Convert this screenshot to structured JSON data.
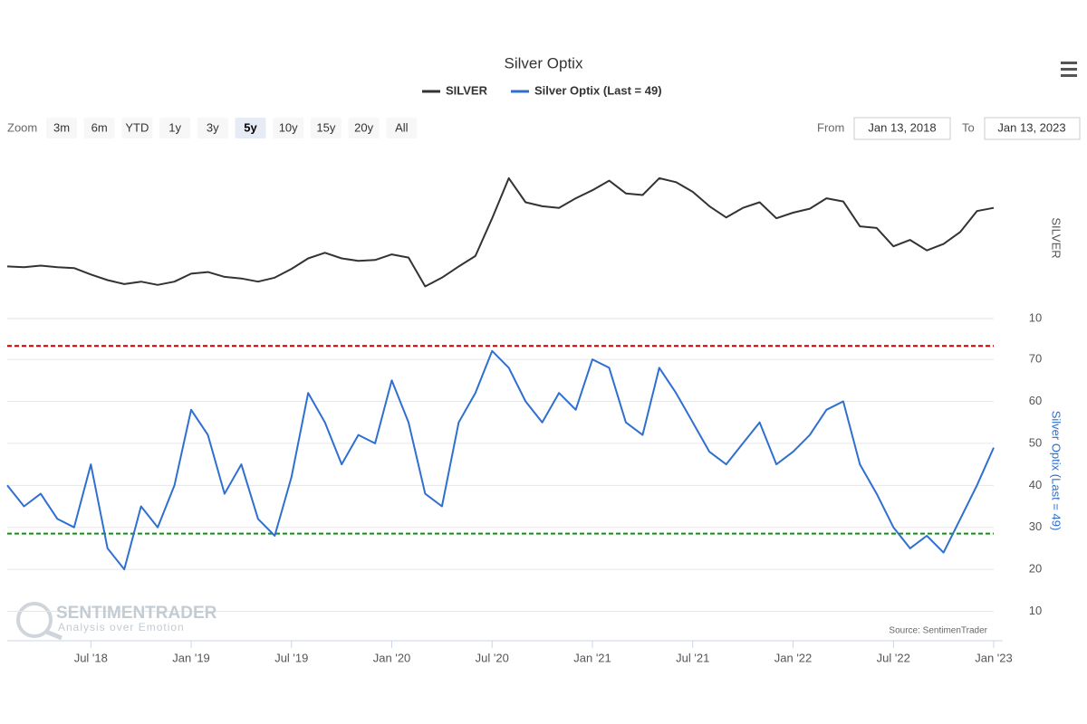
{
  "chart_data": {
    "type": "line",
    "title": "Silver Optix",
    "x": [
      "2018-02",
      "2018-03",
      "2018-04",
      "2018-05",
      "2018-06",
      "2018-07",
      "2018-08",
      "2018-09",
      "2018-10",
      "2018-11",
      "2018-12",
      "2019-01",
      "2019-02",
      "2019-03",
      "2019-04",
      "2019-05",
      "2019-06",
      "2019-07",
      "2019-08",
      "2019-09",
      "2019-10",
      "2019-11",
      "2019-12",
      "2020-01",
      "2020-02",
      "2020-03",
      "2020-04",
      "2020-05",
      "2020-06",
      "2020-07",
      "2020-08",
      "2020-09",
      "2020-10",
      "2020-11",
      "2020-12",
      "2021-01",
      "2021-02",
      "2021-03",
      "2021-04",
      "2021-05",
      "2021-06",
      "2021-07",
      "2021-08",
      "2021-09",
      "2021-10",
      "2021-11",
      "2021-12",
      "2022-01",
      "2022-02",
      "2022-03",
      "2022-04",
      "2022-05",
      "2022-06",
      "2022-07",
      "2022-08",
      "2022-09",
      "2022-10",
      "2022-11",
      "2022-12",
      "2023-01"
    ],
    "xlim": [
      "2018-02",
      "2023-01"
    ],
    "xticks": [
      {
        "value": "2018-07",
        "label": "Jul '18"
      },
      {
        "value": "2019-01",
        "label": "Jan '19"
      },
      {
        "value": "2019-07",
        "label": "Jul '19"
      },
      {
        "value": "2020-01",
        "label": "Jan '20"
      },
      {
        "value": "2020-07",
        "label": "Jul '20"
      },
      {
        "value": "2021-01",
        "label": "Jan '21"
      },
      {
        "value": "2021-07",
        "label": "Jul '21"
      },
      {
        "value": "2022-01",
        "label": "Jan '22"
      },
      {
        "value": "2022-07",
        "label": "Jul '22"
      },
      {
        "value": "2023-01",
        "label": "Jan '23"
      }
    ],
    "series": [
      {
        "name": "SILVER",
        "color": "#333333",
        "axis": "y",
        "values": [
          16.5,
          16.4,
          16.6,
          16.4,
          16.3,
          15.5,
          14.8,
          14.3,
          14.6,
          14.2,
          14.6,
          15.6,
          15.8,
          15.2,
          15.0,
          14.6,
          15.1,
          16.2,
          17.5,
          18.2,
          17.5,
          17.2,
          17.3,
          18.0,
          17.6,
          14.0,
          15.1,
          16.5,
          17.8,
          22.5,
          27.5,
          24.5,
          24.0,
          23.8,
          25.0,
          26.0,
          27.2,
          25.6,
          25.4,
          27.5,
          27.0,
          25.8,
          24.0,
          22.6,
          23.8,
          24.5,
          22.5,
          23.2,
          23.7,
          25.0,
          24.6,
          21.5,
          21.3,
          19.0,
          19.8,
          18.5,
          19.3,
          20.8,
          23.4,
          23.8
        ]
      },
      {
        "name": "Silver Optix (Last = 49)",
        "color": "#2f6fd0",
        "axis": "y2",
        "values": [
          40,
          35,
          38,
          32,
          30,
          45,
          25,
          20,
          35,
          30,
          40,
          58,
          52,
          38,
          45,
          32,
          28,
          42,
          62,
          55,
          45,
          52,
          50,
          65,
          55,
          38,
          35,
          55,
          62,
          72,
          68,
          60,
          55,
          62,
          58,
          70,
          68,
          55,
          52,
          68,
          62,
          55,
          48,
          45,
          50,
          55,
          45,
          48,
          52,
          58,
          60,
          45,
          38,
          30,
          25,
          28,
          24,
          32,
          40,
          49
        ]
      }
    ],
    "y_title": "SILVER",
    "ylim": [
      10,
      31.1
    ],
    "yticks": [
      10
    ],
    "y2_title": "Silver Optix (Last = 49)",
    "y2lim": [
      3,
      78
    ],
    "y2ticks": [
      10,
      20,
      30,
      40,
      50,
      60,
      70
    ],
    "thresholds": [
      {
        "value": 73.2,
        "color": "#c00000"
      },
      {
        "value": 28.5,
        "color": "#1a8a1a"
      }
    ],
    "grid": true,
    "source": "Source: SentimenTrader",
    "watermark": "SENTIMENTRADER",
    "watermark_tagline": "Analysis over Emotion"
  },
  "controls": {
    "zoom_label": "Zoom",
    "zoom_buttons": [
      "3m",
      "6m",
      "YTD",
      "1y",
      "3y",
      "5y",
      "10y",
      "15y",
      "20y",
      "All"
    ],
    "active": "5y",
    "from_label": "From",
    "from_date": "Jan 13, 2018",
    "to_label": "To",
    "to_date": "Jan 13, 2023"
  }
}
